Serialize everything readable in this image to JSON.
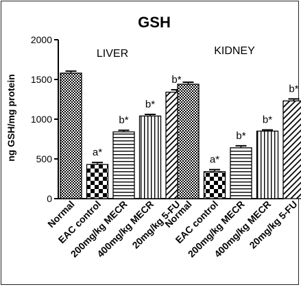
{
  "chart_data": {
    "type": "bar",
    "title": "GSH",
    "ylabel": "ng GSH/mg protein",
    "ylim": [
      0,
      2000
    ],
    "yticks": [
      0,
      500,
      1000,
      1500,
      2000
    ],
    "categories": [
      "Normal",
      "EAC control",
      "200mg/kg MECR",
      "400mg/kg MECR",
      "20mg/kg 5-FU"
    ],
    "groups": [
      {
        "name": "LIVER",
        "values": [
          1580,
          430,
          840,
          1040,
          1340
        ],
        "errors": [
          25,
          25,
          20,
          20,
          30
        ],
        "labels": [
          "",
          "a*",
          "b*",
          "b*",
          "b*"
        ]
      },
      {
        "name": "KIDNEY",
        "values": [
          1440,
          340,
          640,
          850,
          1230
        ],
        "errors": [
          25,
          25,
          25,
          15,
          25
        ],
        "labels": [
          "",
          "a*",
          "b*",
          "b*",
          "b*"
        ]
      }
    ],
    "fills": [
      "checker-small",
      "checker-large",
      "horizontal-lines",
      "vertical-lines",
      "diagonal-lines"
    ],
    "colors": {
      "bar_stroke": "#000000",
      "fill_dark": "#000000",
      "background": "#ffffff"
    },
    "grid": false,
    "legend": "none"
  }
}
